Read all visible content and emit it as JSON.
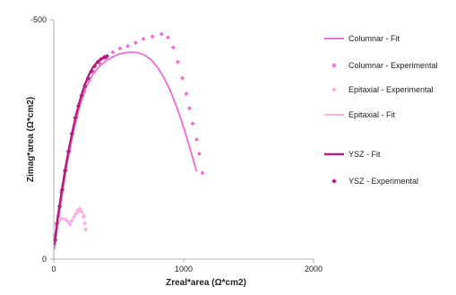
{
  "chart_data": {
    "type": "scatter",
    "xlabel": "Zreal*area (Ω*cm2)",
    "ylabel": "Zimag*area (Ω*cm2)",
    "xlim": [
      0,
      2000
    ],
    "ylim": [
      0,
      -500
    ],
    "y_inverted": true,
    "x_ticks": [
      0,
      1000,
      2000
    ],
    "x_tick_labels": [
      "0",
      "1000",
      "2000"
    ],
    "y_ticks": [
      0,
      -500
    ],
    "y_tick_labels": [
      "0",
      "-500"
    ],
    "grid": false,
    "legend_position": "right",
    "series": [
      {
        "name": "Columnar - Fit",
        "kind": "line",
        "color": "#e779d2",
        "points": [
          [
            5,
            -20
          ],
          [
            50,
            -110
          ],
          [
            100,
            -195
          ],
          [
            150,
            -265
          ],
          [
            200,
            -320
          ],
          [
            250,
            -360
          ],
          [
            300,
            -385
          ],
          [
            350,
            -402
          ],
          [
            400,
            -414
          ],
          [
            450,
            -422
          ],
          [
            500,
            -428
          ],
          [
            550,
            -431
          ],
          [
            600,
            -432
          ],
          [
            650,
            -431
          ],
          [
            700,
            -426
          ],
          [
            750,
            -416
          ],
          [
            800,
            -400
          ],
          [
            850,
            -378
          ],
          [
            900,
            -350
          ],
          [
            950,
            -315
          ],
          [
            1000,
            -275
          ],
          [
            1050,
            -230
          ],
          [
            1100,
            -183
          ]
        ]
      },
      {
        "name": "Columnar - Experimental",
        "kind": "markers",
        "color": "#e779d2",
        "points": [
          [
            12,
            -40
          ],
          [
            35,
            -90
          ],
          [
            60,
            -140
          ],
          [
            85,
            -185
          ],
          [
            110,
            -225
          ],
          [
            140,
            -262
          ],
          [
            170,
            -295
          ],
          [
            200,
            -325
          ],
          [
            235,
            -350
          ],
          [
            270,
            -372
          ],
          [
            310,
            -392
          ],
          [
            355,
            -408
          ],
          [
            400,
            -420
          ],
          [
            455,
            -432
          ],
          [
            510,
            -440
          ],
          [
            570,
            -445
          ],
          [
            630,
            -452
          ],
          [
            690,
            -460
          ],
          [
            760,
            -465
          ],
          [
            830,
            -470
          ],
          [
            880,
            -463
          ],
          [
            920,
            -442
          ],
          [
            955,
            -412
          ],
          [
            990,
            -378
          ],
          [
            1020,
            -345
          ],
          [
            1045,
            -315
          ],
          [
            1070,
            -283
          ],
          [
            1100,
            -250
          ],
          [
            1120,
            -220
          ],
          [
            1145,
            -180
          ]
        ]
      },
      {
        "name": "Epitaxial - Experimental",
        "kind": "markers",
        "color": "#f6b6e8",
        "points": [
          [
            5,
            -50
          ],
          [
            20,
            -70
          ],
          [
            40,
            -80
          ],
          [
            65,
            -85
          ],
          [
            90,
            -83
          ],
          [
            110,
            -78
          ],
          [
            125,
            -72
          ],
          [
            140,
            -80
          ],
          [
            155,
            -88
          ],
          [
            170,
            -95
          ],
          [
            185,
            -102
          ],
          [
            200,
            -105
          ],
          [
            215,
            -100
          ],
          [
            228,
            -88
          ],
          [
            238,
            -75
          ],
          [
            245,
            -62
          ]
        ]
      },
      {
        "name": "Epitaxial - Fit",
        "kind": "line",
        "color": "#f6b6e8",
        "points": [
          [
            2,
            -45
          ],
          [
            30,
            -75
          ],
          [
            60,
            -85
          ],
          [
            90,
            -82
          ],
          [
            120,
            -75
          ],
          [
            150,
            -85
          ],
          [
            175,
            -95
          ],
          [
            200,
            -100
          ],
          [
            225,
            -95
          ],
          [
            245,
            -88
          ]
        ]
      },
      {
        "name": "YSZ - Fit",
        "kind": "line",
        "color": "#b0207d",
        "points": [
          [
            5,
            -30
          ],
          [
            30,
            -85
          ],
          [
            60,
            -140
          ],
          [
            90,
            -190
          ],
          [
            120,
            -235
          ],
          [
            150,
            -275
          ],
          [
            180,
            -310
          ],
          [
            210,
            -340
          ],
          [
            240,
            -365
          ],
          [
            270,
            -385
          ],
          [
            300,
            -400
          ],
          [
            330,
            -410
          ],
          [
            360,
            -417
          ],
          [
            390,
            -420
          ],
          [
            410,
            -422
          ]
        ]
      },
      {
        "name": "YSZ - Experimental",
        "kind": "markers",
        "color": "#b0207d",
        "points": [
          [
            10,
            -40
          ],
          [
            25,
            -75
          ],
          [
            45,
            -110
          ],
          [
            65,
            -145
          ],
          [
            90,
            -185
          ],
          [
            115,
            -225
          ],
          [
            140,
            -262
          ],
          [
            165,
            -295
          ],
          [
            190,
            -320
          ],
          [
            215,
            -342
          ],
          [
            240,
            -362
          ],
          [
            265,
            -378
          ],
          [
            290,
            -392
          ],
          [
            315,
            -403
          ],
          [
            340,
            -412
          ],
          [
            365,
            -418
          ],
          [
            390,
            -422
          ],
          [
            410,
            -424
          ]
        ]
      }
    ]
  }
}
